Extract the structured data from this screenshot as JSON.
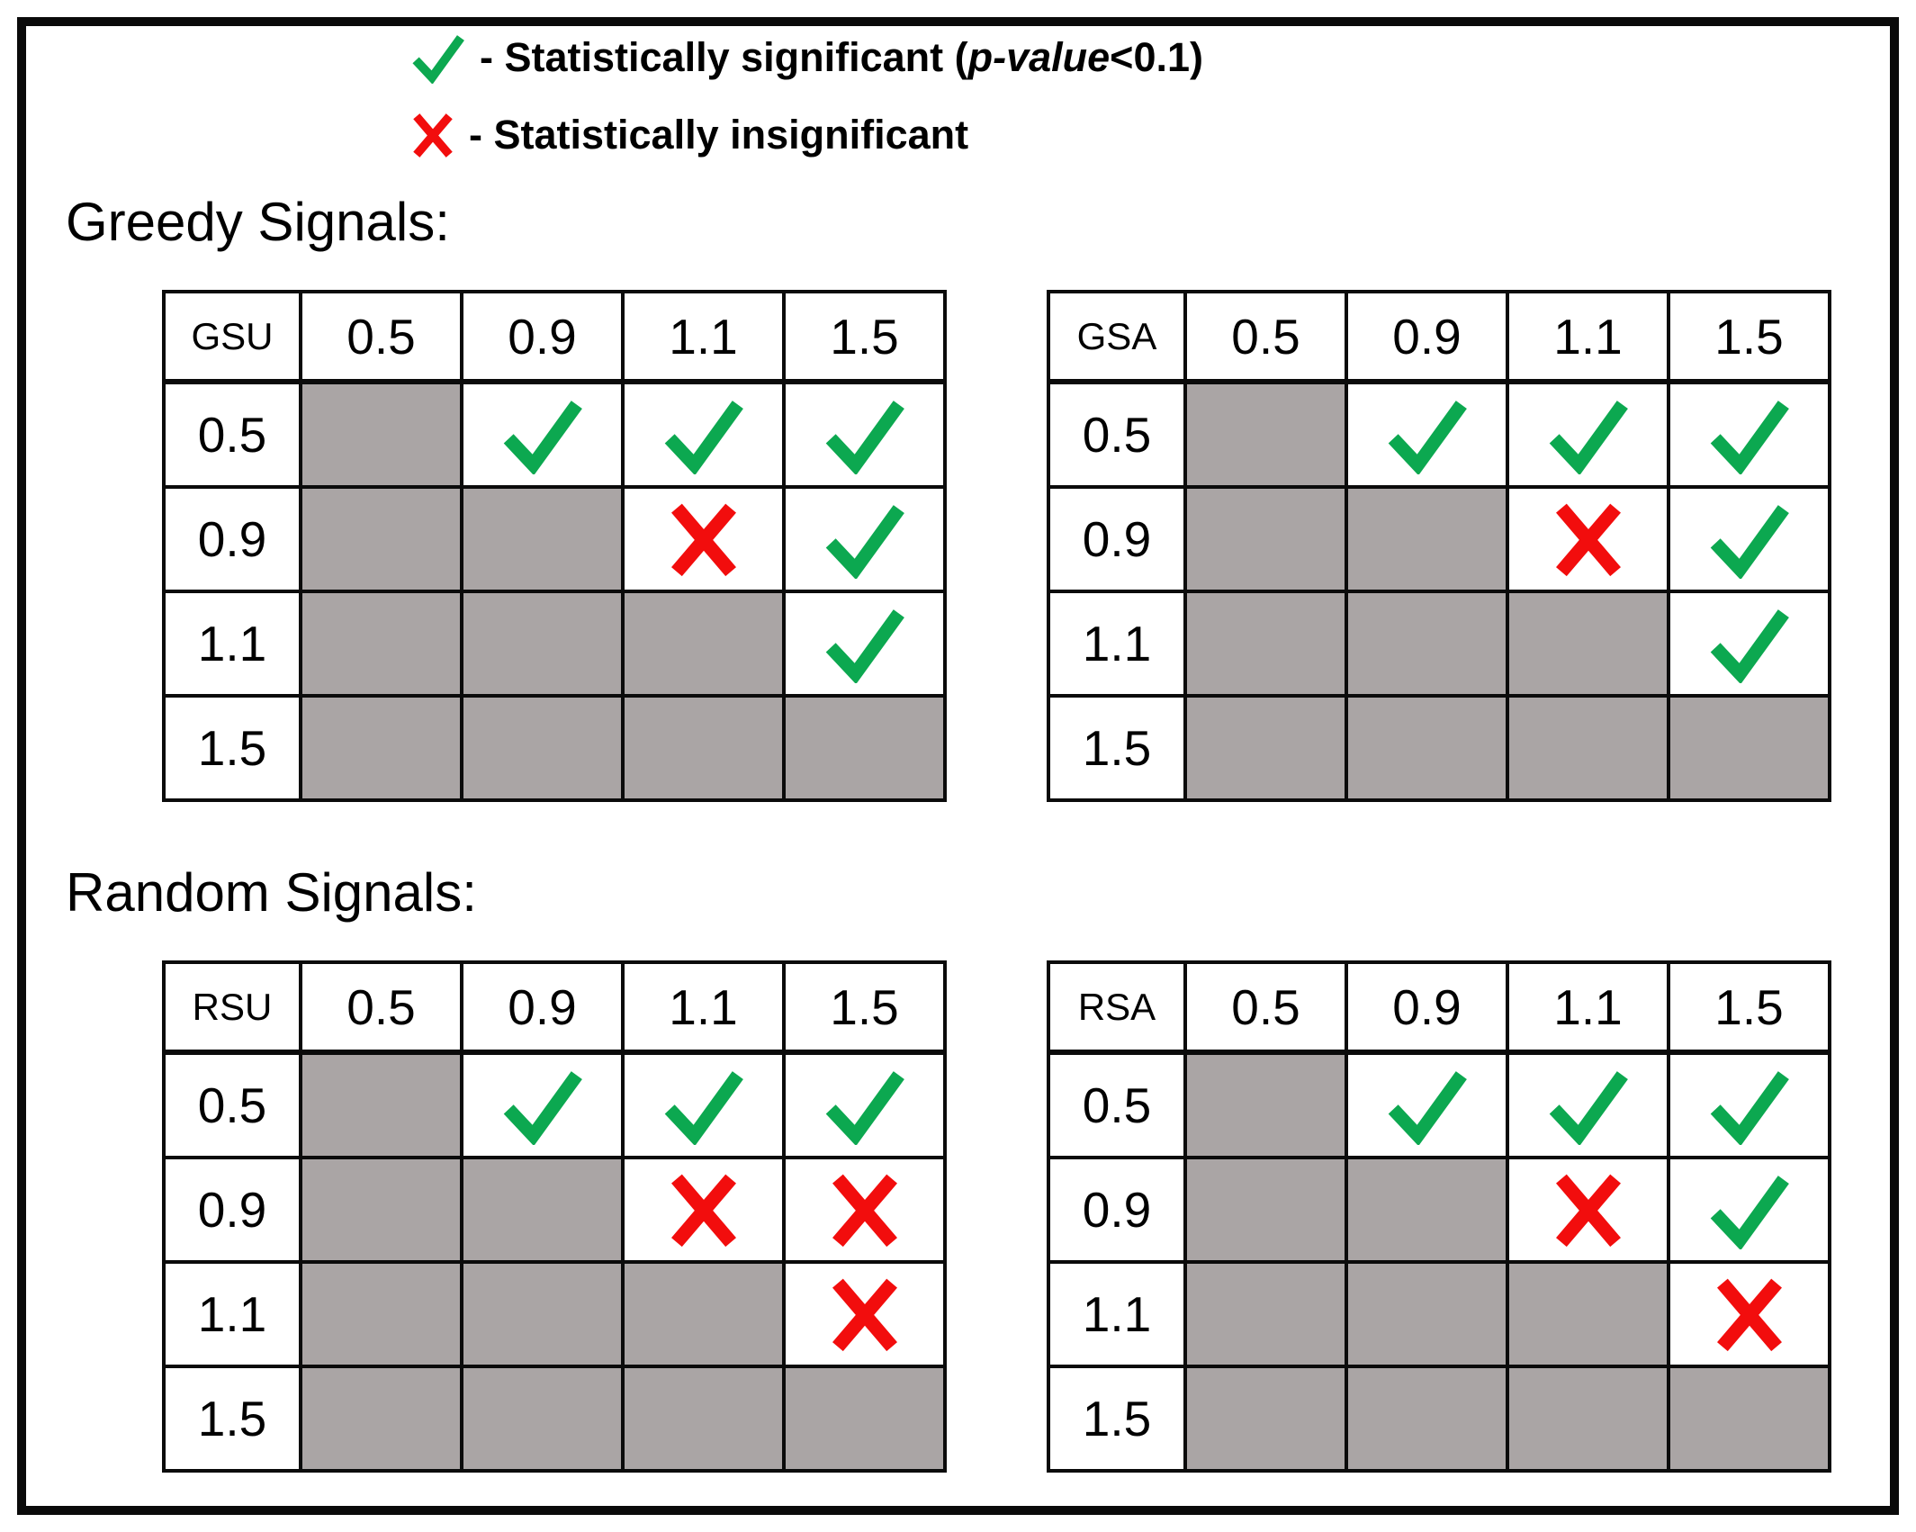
{
  "colors": {
    "significant_green": "#0ca850",
    "insignificant_red": "#f20d0d",
    "masked_gray": "#aaa5a5",
    "border_black": "#0a0a0a"
  },
  "legend": {
    "significant": {
      "icon": "check-icon",
      "prefix": "- Statistically significant (",
      "emphasis": "p-value",
      "suffix": "<0.1)"
    },
    "insignificant": {
      "icon": "cross-icon",
      "label": "- Statistically insignificant"
    }
  },
  "sections": [
    {
      "title": "Greedy Signals:",
      "tables": [
        {
          "name": "GSU",
          "columns": [
            "0.5",
            "0.9",
            "1.1",
            "1.5"
          ],
          "rows": [
            {
              "label": "0.5",
              "cells": [
                "gray",
                "check",
                "check",
                "check"
              ]
            },
            {
              "label": "0.9",
              "cells": [
                "gray",
                "gray",
                "cross",
                "check"
              ]
            },
            {
              "label": "1.1",
              "cells": [
                "gray",
                "gray",
                "gray",
                "check"
              ]
            },
            {
              "label": "1.5",
              "cells": [
                "gray",
                "gray",
                "gray",
                "gray"
              ]
            }
          ]
        },
        {
          "name": "GSA",
          "columns": [
            "0.5",
            "0.9",
            "1.1",
            "1.5"
          ],
          "rows": [
            {
              "label": "0.5",
              "cells": [
                "gray",
                "check",
                "check",
                "check"
              ]
            },
            {
              "label": "0.9",
              "cells": [
                "gray",
                "gray",
                "cross",
                "check"
              ]
            },
            {
              "label": "1.1",
              "cells": [
                "gray",
                "gray",
                "gray",
                "check"
              ]
            },
            {
              "label": "1.5",
              "cells": [
                "gray",
                "gray",
                "gray",
                "gray"
              ]
            }
          ]
        }
      ]
    },
    {
      "title": "Random Signals:",
      "tables": [
        {
          "name": "RSU",
          "columns": [
            "0.5",
            "0.9",
            "1.1",
            "1.5"
          ],
          "rows": [
            {
              "label": "0.5",
              "cells": [
                "gray",
                "check",
                "check",
                "check"
              ]
            },
            {
              "label": "0.9",
              "cells": [
                "gray",
                "gray",
                "cross",
                "cross"
              ]
            },
            {
              "label": "1.1",
              "cells": [
                "gray",
                "gray",
                "gray",
                "cross"
              ]
            },
            {
              "label": "1.5",
              "cells": [
                "gray",
                "gray",
                "gray",
                "gray"
              ]
            }
          ]
        },
        {
          "name": "RSA",
          "columns": [
            "0.5",
            "0.9",
            "1.1",
            "1.5"
          ],
          "rows": [
            {
              "label": "0.5",
              "cells": [
                "gray",
                "check",
                "check",
                "check"
              ]
            },
            {
              "label": "0.9",
              "cells": [
                "gray",
                "gray",
                "cross",
                "check"
              ]
            },
            {
              "label": "1.1",
              "cells": [
                "gray",
                "gray",
                "gray",
                "cross"
              ]
            },
            {
              "label": "1.5",
              "cells": [
                "gray",
                "gray",
                "gray",
                "gray"
              ]
            }
          ]
        }
      ]
    }
  ]
}
